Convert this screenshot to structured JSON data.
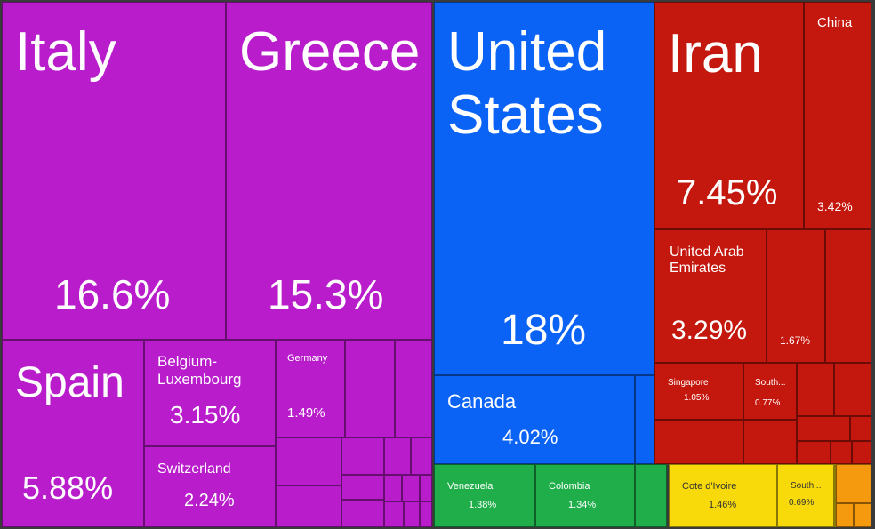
{
  "chart_data": {
    "type": "treemap",
    "unit": "%",
    "items": [
      {
        "label": "Italy",
        "value_text": "16.6%",
        "value": 16.6,
        "group": "Europe",
        "color": "#b81ccb"
      },
      {
        "label": "Greece",
        "value_text": "15.3%",
        "value": 15.3,
        "group": "Europe",
        "color": "#b81ccb"
      },
      {
        "label": "Spain",
        "value_text": "5.88%",
        "value": 5.88,
        "group": "Europe",
        "color": "#b81ccb"
      },
      {
        "label": "Belgium-\nLuxembourg",
        "value_text": "3.15%",
        "value": 3.15,
        "group": "Europe",
        "color": "#b81ccb"
      },
      {
        "label": "Switzerland",
        "value_text": "2.24%",
        "value": 2.24,
        "group": "Europe",
        "color": "#b81ccb"
      },
      {
        "label": "Germany",
        "value_text": "1.49%",
        "value": 1.49,
        "group": "Europe",
        "color": "#b81ccb"
      },
      {
        "label": "United\nStates",
        "value_text": "18%",
        "value": 18,
        "group": "North America",
        "color": "#0b63f5"
      },
      {
        "label": "Canada",
        "value_text": "4.02%",
        "value": 4.02,
        "group": "North America",
        "color": "#0b63f5"
      },
      {
        "label": "Iran",
        "value_text": "7.45%",
        "value": 7.45,
        "group": "Asia",
        "color": "#c4170d"
      },
      {
        "label": "China",
        "value_text": "3.42%",
        "value": 3.42,
        "group": "Asia",
        "color": "#c4170d"
      },
      {
        "label": "United Arab\nEmirates",
        "value_text": "3.29%",
        "value": 3.29,
        "group": "Asia",
        "color": "#c4170d"
      },
      {
        "label": "",
        "value_text": "1.67%",
        "value": 1.67,
        "group": "Asia",
        "color": "#c4170d"
      },
      {
        "label": "Singapore",
        "value_text": "1.05%",
        "value": 1.05,
        "group": "Asia",
        "color": "#c4170d"
      },
      {
        "label": "South...",
        "value_text": "0.77%",
        "value": 0.77,
        "group": "Asia",
        "color": "#c4170d"
      },
      {
        "label": "Venezuela",
        "value_text": "1.38%",
        "value": 1.38,
        "group": "South America",
        "color": "#1fae4a"
      },
      {
        "label": "Colombia",
        "value_text": "1.34%",
        "value": 1.34,
        "group": "South America",
        "color": "#1fae4a"
      },
      {
        "label": "Cote d'Ivoire",
        "value_text": "1.46%",
        "value": 1.46,
        "group": "Africa",
        "color": "#f8da0b"
      },
      {
        "label": "South...",
        "value_text": "0.69%",
        "value": 0.69,
        "group": "Africa",
        "color": "#f8da0b"
      }
    ],
    "group_colors": {
      "Europe": "#b81ccb",
      "North America": "#0b63f5",
      "Asia": "#c4170d",
      "South America": "#1fae4a",
      "Africa": "#f8da0b",
      "Oceania": "#f59a0e"
    }
  }
}
